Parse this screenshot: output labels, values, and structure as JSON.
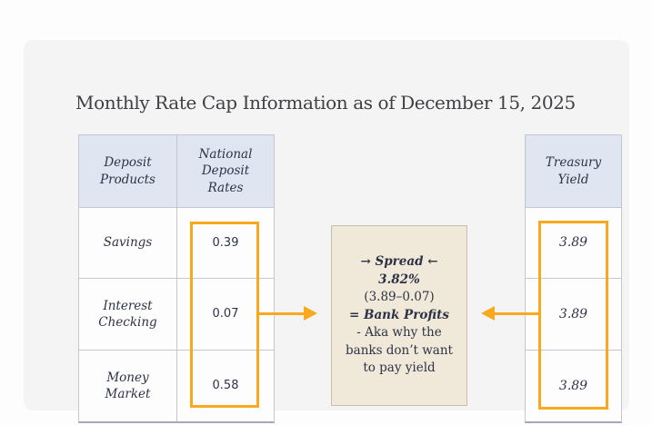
{
  "title": "Monthly Rate Cap Information as of December 15, 2025",
  "colors": {
    "page_bg": "#fdfdfe",
    "card_bg": "#f4f4f5",
    "header_bg": "#dfe6f2",
    "cell_bg": "#fdfdfe",
    "border": "#c2c7d1",
    "border_dark": "#a6a9b5",
    "highlight": "#f8a91d",
    "note_bg": "#f0e9d9",
    "note_border": "#c6c0b0",
    "ink": "#2e3247",
    "title_ink": "#3f3f44"
  },
  "deposit_table": {
    "columns": [
      "Deposit Products",
      "National Deposit Rates"
    ],
    "rows": [
      {
        "product": "Savings",
        "rate": "0.39"
      },
      {
        "product": "Interest Checking",
        "rate": "0.07"
      },
      {
        "product": "Money Market",
        "rate": "0.58"
      }
    ]
  },
  "treasury_table": {
    "header": "Treasury Yield",
    "rows": [
      "3.89",
      "3.89",
      "3.89"
    ]
  },
  "spread_box": {
    "spread_label": "→ Spread ←",
    "spread_value": "3.82%",
    "calculation": "(3.89–0.07)",
    "profits_label": "= Bank Profits",
    "note": "- Aka why the banks don’t want to pay yield"
  }
}
